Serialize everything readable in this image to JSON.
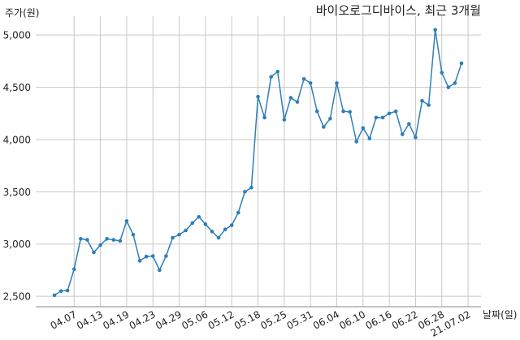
{
  "chart_data": {
    "type": "line",
    "title": "바이오로그디바이스, 최근 3개월",
    "ylabel": "주가(원)",
    "xlabel": "날짜(일)",
    "ylim": [
      2400,
      5180
    ],
    "yticks": [
      2500,
      3000,
      3500,
      4000,
      4500,
      5000
    ],
    "ytick_labels": [
      "2,500",
      "3,000",
      "3,500",
      "4,000",
      "4,500",
      "5,000"
    ],
    "xtick_labels": [
      "04.07",
      "04.13",
      "04.19",
      "04.23",
      "04.29",
      "05.06",
      "05.12",
      "05.18",
      "05.25",
      "05.31",
      "06.04",
      "06.10",
      "06.16",
      "06.22",
      "06.28",
      "21.07.02"
    ],
    "xtick_indices": [
      3,
      7,
      11,
      15,
      19,
      23,
      27,
      31,
      35,
      39,
      43,
      47,
      51,
      55,
      59,
      63
    ],
    "grid": true,
    "line_color": "#2e7fb8",
    "series": [
      {
        "values": [
          2510,
          2550,
          2555,
          2760,
          3050,
          3040,
          2920,
          2990,
          3050,
          3040,
          3030,
          3220,
          3090,
          2840,
          2880,
          2885,
          2750,
          2885,
          3060,
          3090,
          3130,
          3200,
          3260,
          3190,
          3120,
          3060,
          3140,
          3180,
          3300,
          3500,
          3540,
          4410,
          4210,
          4600,
          4650,
          4190,
          4400,
          4360,
          4580,
          4540,
          4270,
          4120,
          4200,
          4540,
          4270,
          4265,
          3980,
          4110,
          4010,
          4210,
          4210,
          4250,
          4270,
          4050,
          4150,
          4020,
          4370,
          4330,
          5050,
          4640,
          4500,
          4540,
          4730
        ]
      }
    ]
  }
}
